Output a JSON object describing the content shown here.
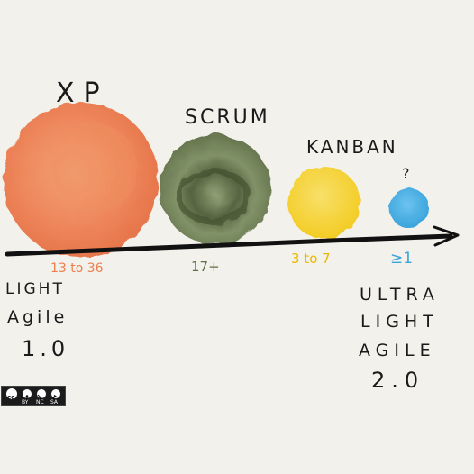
{
  "labels": {
    "xp": "XP",
    "scrum": "SCRUM",
    "kanban": "KANBAN",
    "unknown": "?"
  },
  "sizes": {
    "xp": "13 to 36",
    "scrum": "17+",
    "kanban": "3 to 7",
    "unknown": "≥1"
  },
  "left_note": [
    "LIGHT",
    "Agile",
    "1.0"
  ],
  "right_note": [
    "ULTRA",
    "LIGHT",
    "AGILE",
    "2.0"
  ],
  "license": {
    "badge_icons": [
      "cc-icon",
      "by-icon",
      "nc-icon",
      "sa-icon"
    ],
    "badge_text": [
      "BY",
      "NC",
      "SA"
    ]
  },
  "colors": {
    "xp": "#ee7d4e",
    "scrum": "#5f7046",
    "kanban": "#f6d336",
    "unknown": "#45aee3",
    "arrow": "#111111",
    "background": "#f3f1ec"
  }
}
